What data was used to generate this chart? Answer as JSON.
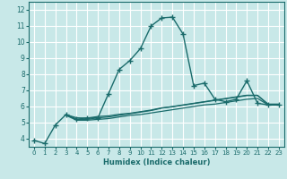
{
  "xlabel": "Humidex (Indice chaleur)",
  "bg_color": "#c8e8e8",
  "grid_color": "#ffffff",
  "line_color": "#1a6b6b",
  "xlim": [
    -0.5,
    23.5
  ],
  "ylim": [
    3.5,
    12.5
  ],
  "yticks": [
    4,
    5,
    6,
    7,
    8,
    9,
    10,
    11,
    12
  ],
  "xticks": [
    0,
    1,
    2,
    3,
    4,
    5,
    6,
    7,
    8,
    9,
    10,
    11,
    12,
    13,
    14,
    15,
    16,
    17,
    18,
    19,
    20,
    21,
    22,
    23
  ],
  "lines": [
    {
      "x": [
        0,
        1,
        2,
        3,
        4,
        5,
        6,
        7,
        8,
        9,
        10,
        11,
        12,
        13,
        14,
        15,
        16,
        17,
        18,
        19,
        20,
        21,
        22,
        23
      ],
      "y": [
        3.9,
        3.7,
        4.85,
        5.5,
        5.2,
        5.3,
        5.3,
        6.8,
        8.3,
        8.85,
        9.6,
        11.0,
        11.5,
        11.55,
        10.5,
        7.3,
        7.45,
        6.45,
        6.3,
        6.45,
        7.6,
        6.2,
        6.1,
        6.1
      ],
      "marker": "+",
      "markersize": 4,
      "linewidth": 1.0
    },
    {
      "x": [
        3,
        4,
        5,
        6,
        7,
        8,
        9,
        10,
        11,
        12,
        13,
        14,
        15,
        16,
        17,
        18,
        19,
        20,
        21,
        22,
        23
      ],
      "y": [
        5.45,
        5.15,
        5.15,
        5.2,
        5.25,
        5.35,
        5.45,
        5.5,
        5.6,
        5.7,
        5.8,
        5.9,
        6.0,
        6.1,
        6.15,
        6.25,
        6.35,
        6.45,
        6.5,
        6.1,
        6.1
      ],
      "marker": null,
      "markersize": 0,
      "linewidth": 0.9
    },
    {
      "x": [
        3,
        4,
        5,
        6,
        7,
        8,
        9,
        10,
        11,
        12,
        13,
        14,
        15,
        16,
        17,
        18,
        19,
        20,
        21,
        22,
        23
      ],
      "y": [
        5.5,
        5.2,
        5.2,
        5.3,
        5.35,
        5.45,
        5.55,
        5.65,
        5.75,
        5.9,
        6.0,
        6.1,
        6.2,
        6.3,
        6.4,
        6.5,
        6.6,
        6.7,
        6.7,
        6.15,
        6.15
      ],
      "marker": null,
      "markersize": 0,
      "linewidth": 0.9
    },
    {
      "x": [
        3,
        4,
        5,
        6,
        7,
        8,
        9,
        10,
        11,
        12,
        13,
        14,
        15,
        16,
        17,
        18,
        19,
        20,
        21,
        22,
        23
      ],
      "y": [
        5.5,
        5.3,
        5.28,
        5.38,
        5.42,
        5.52,
        5.58,
        5.68,
        5.78,
        5.92,
        5.98,
        6.08,
        6.18,
        6.28,
        6.38,
        6.48,
        6.58,
        6.68,
        6.68,
        6.12,
        6.12
      ],
      "marker": null,
      "markersize": 0,
      "linewidth": 0.9
    }
  ]
}
